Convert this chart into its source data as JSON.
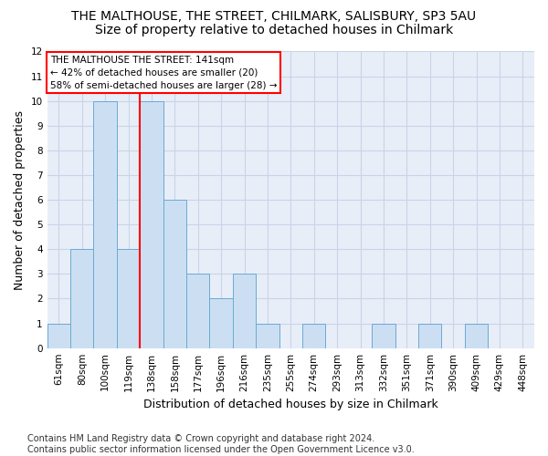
{
  "title1": "THE MALTHOUSE, THE STREET, CHILMARK, SALISBURY, SP3 5AU",
  "title2": "Size of property relative to detached houses in Chilmark",
  "xlabel": "Distribution of detached houses by size in Chilmark",
  "ylabel": "Number of detached properties",
  "categories": [
    "61sqm",
    "80sqm",
    "100sqm",
    "119sqm",
    "138sqm",
    "158sqm",
    "177sqm",
    "196sqm",
    "216sqm",
    "235sqm",
    "255sqm",
    "274sqm",
    "293sqm",
    "313sqm",
    "332sqm",
    "351sqm",
    "371sqm",
    "390sqm",
    "409sqm",
    "429sqm",
    "448sqm"
  ],
  "values": [
    1,
    4,
    10,
    4,
    10,
    6,
    3,
    2,
    3,
    1,
    0,
    1,
    0,
    0,
    1,
    0,
    1,
    0,
    1,
    0,
    0
  ],
  "bar_color": "#ccdff2",
  "bar_edge_color": "#6aaad4",
  "vline_index": 4,
  "marker_label_line1": "THE MALTHOUSE THE STREET: 141sqm",
  "marker_label_line2": "← 42% of detached houses are smaller (20)",
  "marker_label_line3": "58% of semi-detached houses are larger (28) →",
  "annotation_box_color": "white",
  "annotation_edge_color": "red",
  "vline_color": "red",
  "ylim": [
    0,
    12
  ],
  "yticks": [
    0,
    1,
    2,
    3,
    4,
    5,
    6,
    7,
    8,
    9,
    10,
    11,
    12
  ],
  "grid_color": "#c8d4e8",
  "background_color": "#e8eef8",
  "footer": "Contains HM Land Registry data © Crown copyright and database right 2024.\nContains public sector information licensed under the Open Government Licence v3.0.",
  "title1_fontsize": 10,
  "title2_fontsize": 10,
  "xlabel_fontsize": 9,
  "ylabel_fontsize": 9,
  "tick_fontsize": 7.5,
  "footer_fontsize": 7
}
